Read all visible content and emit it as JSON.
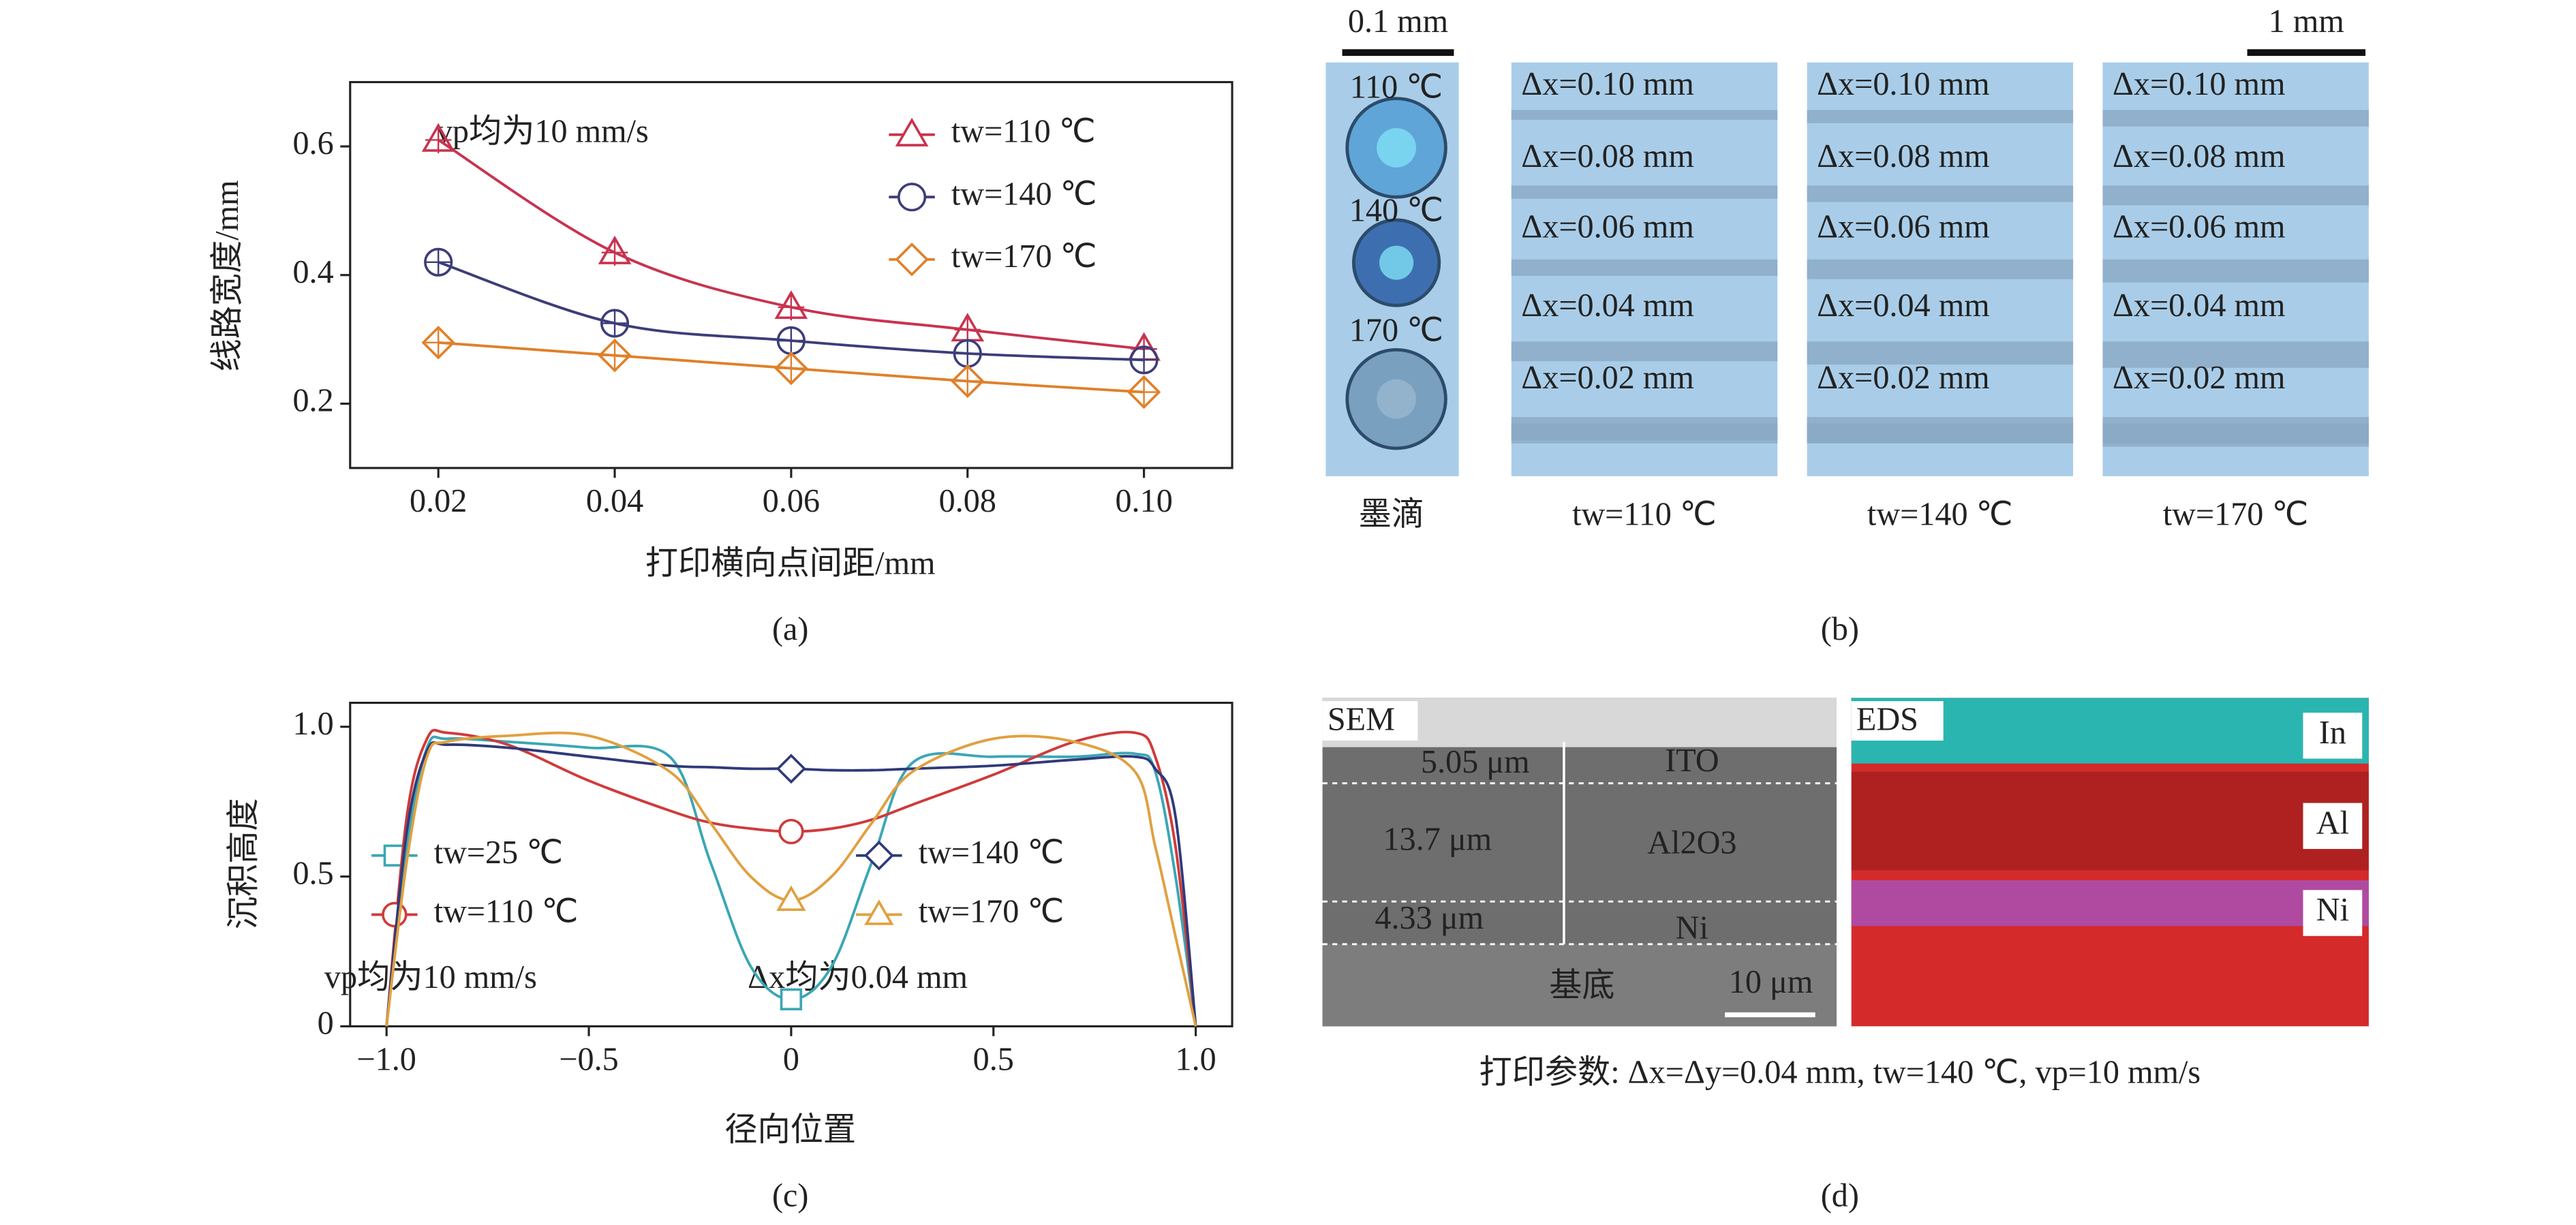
{
  "chart_data": [
    {
      "type": "line",
      "caption": "(a)",
      "xlabel": "打印横向点间距/mm",
      "ylabel": "线路宽度/mm",
      "annotations": [
        "vp均为10 mm/s"
      ],
      "x": [
        0.02,
        0.04,
        0.06,
        0.08,
        0.1
      ],
      "xlim": [
        0.01,
        0.11
      ],
      "ylim": [
        0.1,
        0.7
      ],
      "xticks": [
        0.02,
        0.04,
        0.06,
        0.08,
        {
          "value": 0.1,
          "label": "0.10"
        }
      ],
      "yticks": [
        0.2,
        0.4,
        0.6
      ],
      "series": [
        {
          "name": "tw=110 ℃",
          "color": "#c8334f",
          "marker": "triangle",
          "values": [
            0.61,
            0.435,
            0.35,
            0.315,
            0.285
          ]
        },
        {
          "name": "tw=140 ℃",
          "color": "#3d3d7a",
          "marker": "circle",
          "values": [
            0.42,
            0.325,
            0.298,
            0.278,
            0.268
          ]
        },
        {
          "name": "tw=170 ℃",
          "color": "#e0802a",
          "marker": "diamond",
          "values": [
            0.295,
            0.275,
            0.255,
            0.235,
            0.218
          ]
        }
      ]
    },
    {
      "type": "line",
      "caption": "(c)",
      "xlabel": "径向位置",
      "ylabel": "沉积高度",
      "annotations": [
        "vp均为10 mm/s",
        "Δx均为0.04 mm"
      ],
      "x": [
        -1,
        -0.95,
        -0.9,
        -0.85,
        -0.7,
        -0.5,
        -0.3,
        -0.2,
        -0.1,
        0,
        0.1,
        0.2,
        0.3,
        0.5,
        0.7,
        0.85,
        0.9,
        0.95,
        1
      ],
      "xlim": [
        -1.09,
        1.09
      ],
      "ylim": [
        0,
        1.08
      ],
      "xticks": [
        {
          "value": -1,
          "label": "−1.0"
        },
        {
          "value": -0.5,
          "label": "−0.5"
        },
        0,
        0.5,
        {
          "value": 1,
          "label": "1.0"
        }
      ],
      "yticks": [
        0,
        0.5,
        {
          "value": 1,
          "label": "1.0"
        }
      ],
      "series": [
        {
          "name": "tw=25 ℃",
          "color": "#3aa7b5",
          "marker": "square",
          "values": [
            0,
            0.6,
            0.93,
            0.96,
            0.95,
            0.93,
            0.9,
            0.55,
            0.2,
            0.09,
            0.2,
            0.55,
            0.88,
            0.9,
            0.9,
            0.91,
            0.85,
            0.5,
            0
          ]
        },
        {
          "name": "tw=110 ℃",
          "color": "#d03a3a",
          "marker": "circle",
          "values": [
            0,
            0.7,
            0.96,
            0.98,
            0.94,
            0.82,
            0.72,
            0.68,
            0.66,
            0.65,
            0.66,
            0.69,
            0.74,
            0.84,
            0.95,
            0.98,
            0.9,
            0.6,
            0
          ]
        },
        {
          "name": "tw=140 ℃",
          "color": "#2f3a7a",
          "marker": "diamond",
          "values": [
            0,
            0.65,
            0.92,
            0.94,
            0.93,
            0.9,
            0.87,
            0.865,
            0.86,
            0.86,
            0.855,
            0.855,
            0.86,
            0.87,
            0.89,
            0.9,
            0.86,
            0.7,
            0
          ]
        },
        {
          "name": "tw=170 ℃",
          "color": "#e0a040",
          "marker": "triangle",
          "values": [
            0,
            0.55,
            0.9,
            0.95,
            0.97,
            0.97,
            0.85,
            0.68,
            0.5,
            0.42,
            0.5,
            0.68,
            0.85,
            0.96,
            0.95,
            0.85,
            0.6,
            0.3,
            0
          ]
        }
      ]
    }
  ],
  "panel_b": {
    "caption": "(b)",
    "scale_bars": [
      "0.1 mm",
      "1 mm"
    ],
    "droplet": {
      "label": "墨滴",
      "temperatures": [
        "110 ℃",
        "140 ℃",
        "170 ℃"
      ]
    },
    "columns": [
      {
        "label": "tw=110 ℃",
        "rows": [
          "Δx=0.10 mm",
          "Δx=0.08 mm",
          "Δx=0.06 mm",
          "Δx=0.04 mm",
          "Δx=0.02 mm"
        ]
      },
      {
        "label": "tw=140 ℃",
        "rows": [
          "Δx=0.10 mm",
          "Δx=0.08 mm",
          "Δx=0.06 mm",
          "Δx=0.04 mm",
          "Δx=0.02 mm"
        ]
      },
      {
        "label": "tw=170 ℃",
        "rows": [
          "Δx=0.10 mm",
          "Δx=0.08 mm",
          "Δx=0.06 mm",
          "Δx=0.04 mm",
          "Δx=0.02 mm"
        ]
      }
    ]
  },
  "panel_d": {
    "caption": "(d)",
    "sem_label": "SEM",
    "eds_label": "EDS",
    "thicknesses": [
      "5.05 μm",
      "13.7 μm",
      "4.33 μm"
    ],
    "layers": [
      "ITO",
      "Al2O3",
      "Ni"
    ],
    "substrate": "基底",
    "scale_bar": "10 μm",
    "elements": [
      "In",
      "Al",
      "Ni"
    ],
    "parameters": "打印参数: Δx=Δy=0.04 mm, tw=140 ℃, vp=10 mm/s"
  }
}
